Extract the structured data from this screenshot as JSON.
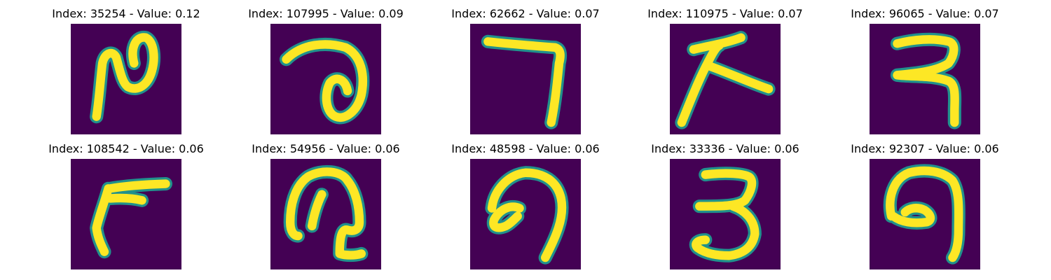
{
  "colors": {
    "background": "#440154",
    "stroke_core": "#fde725",
    "stroke_edge": "#21918c"
  },
  "panels": [
    {
      "title": "Index: 35254 - Value: 0.12",
      "glyph": "hook-loop"
    },
    {
      "title": "Index: 107995 - Value: 0.09",
      "glyph": "arc-loop"
    },
    {
      "title": "Index: 62662 - Value: 0.07",
      "glyph": "seven"
    },
    {
      "title": "Index: 110975 - Value: 0.07",
      "glyph": "arrow-stroke"
    },
    {
      "title": "Index: 96065 - Value: 0.07",
      "glyph": "double-hook"
    },
    {
      "title": "Index: 108542 - Value: 0.06",
      "glyph": "thick-seven"
    },
    {
      "title": "Index: 54956 - Value: 0.06",
      "glyph": "curl-hook"
    },
    {
      "title": "Index: 48598 - Value: 0.06",
      "glyph": "curl-nine"
    },
    {
      "title": "Index: 33336 - Value: 0.06",
      "glyph": "three"
    },
    {
      "title": "Index: 92307 - Value: 0.06",
      "glyph": "loop-nine"
    }
  ]
}
